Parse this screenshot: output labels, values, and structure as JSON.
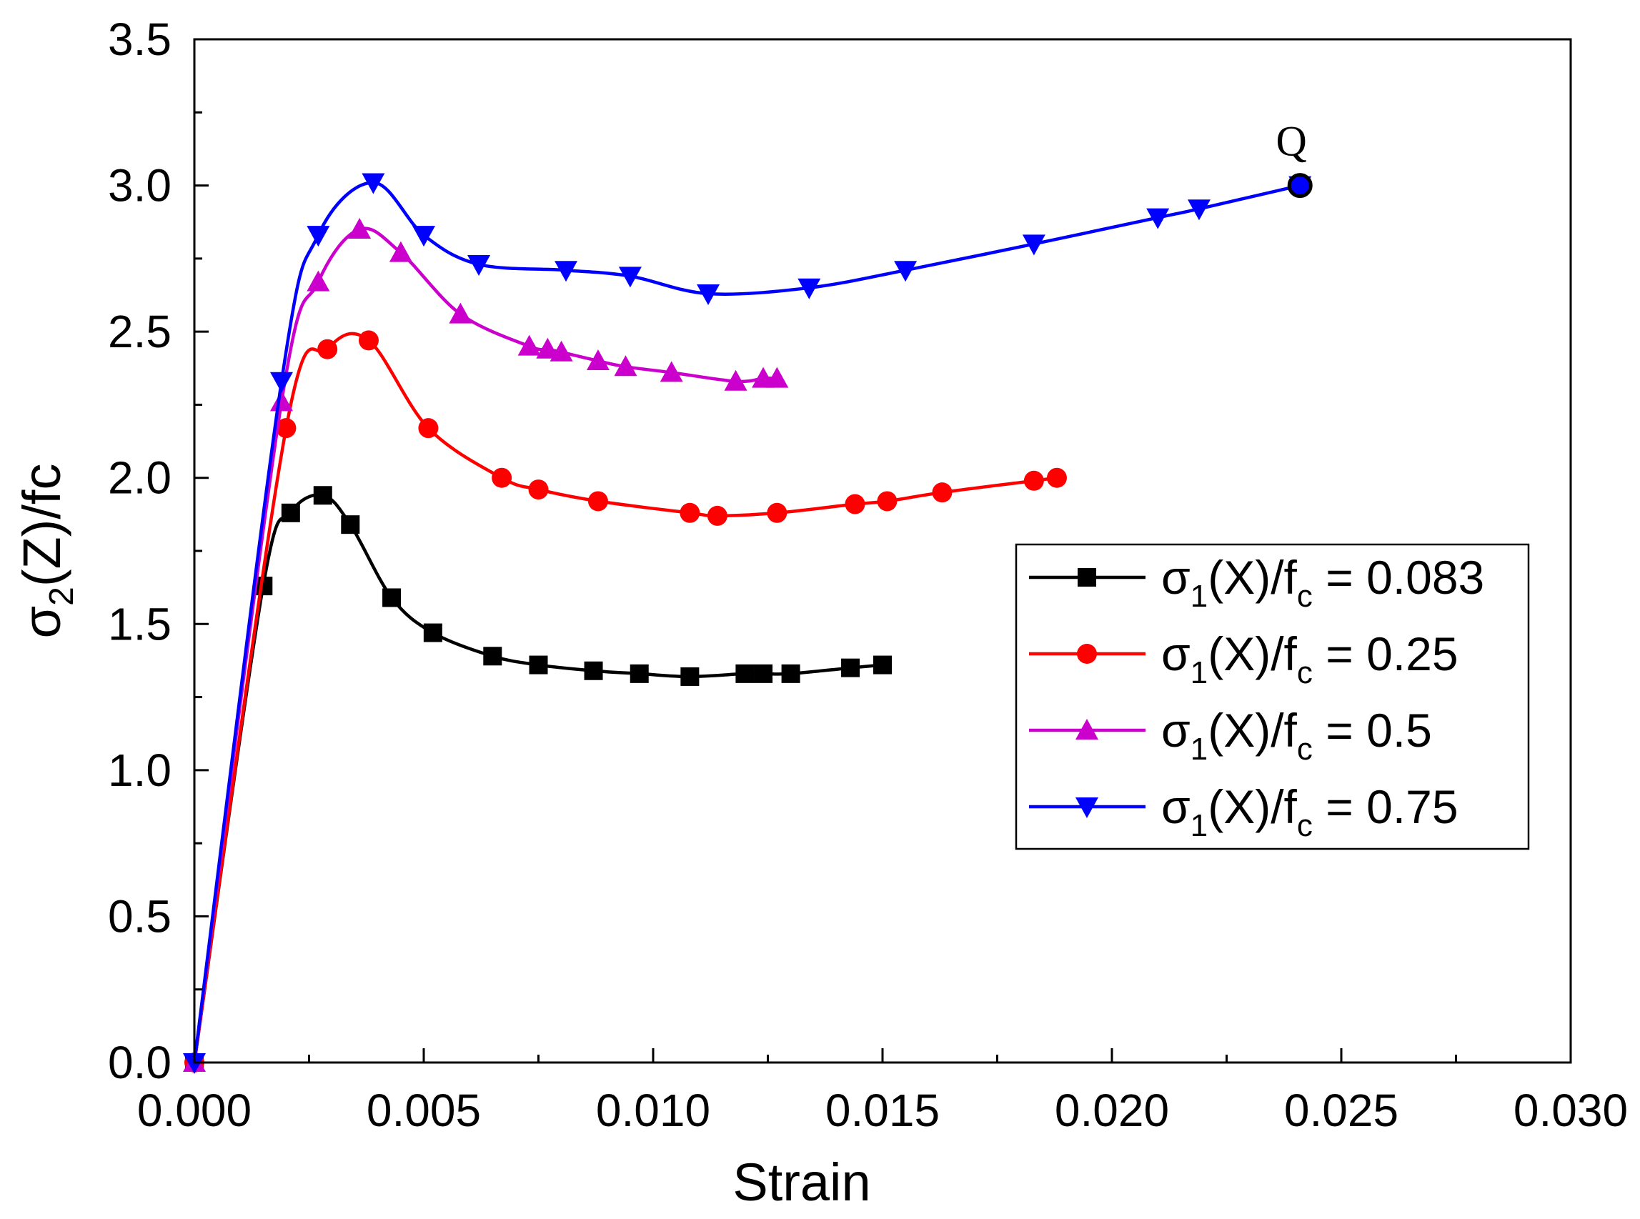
{
  "chart_data": {
    "type": "line",
    "title": "",
    "xlabel": "Strain",
    "ylabel_main": "σ",
    "ylabel_sub": "2",
    "ylabel_rest": "(Z)/fc",
    "xlim": [
      0.0,
      0.03
    ],
    "ylim": [
      0.0,
      3.5
    ],
    "xticks": [
      "0.000",
      "0.005",
      "0.010",
      "0.015",
      "0.020",
      "0.025",
      "0.030"
    ],
    "yticks": [
      "0.0",
      "0.5",
      "1.0",
      "1.5",
      "2.0",
      "2.5",
      "3.0",
      "3.5"
    ],
    "grid": false,
    "legend_position": "right-middle",
    "series": [
      {
        "name": "σ1(X)/fc = 0.083",
        "legend_main": "σ",
        "legend_sub1": "1",
        "legend_mid": "(X)/f",
        "legend_sub2": "c",
        "legend_value": " = 0.083",
        "color": "#000000",
        "marker": "square",
        "x": [
          0.0,
          0.0015,
          0.0021,
          0.0028,
          0.0034,
          0.0043,
          0.0052,
          0.0065,
          0.0075,
          0.0087,
          0.0097,
          0.0108,
          0.012,
          0.0124,
          0.013,
          0.0143,
          0.015
        ],
        "y": [
          0.0,
          1.63,
          1.88,
          1.94,
          1.84,
          1.59,
          1.47,
          1.39,
          1.36,
          1.34,
          1.33,
          1.32,
          1.33,
          1.33,
          1.33,
          1.35,
          1.36
        ]
      },
      {
        "name": "σ1(X)/fc = 0.25",
        "legend_main": "σ",
        "legend_sub1": "1",
        "legend_mid": "(X)/f",
        "legend_sub2": "c",
        "legend_value": " = 0.25",
        "color": "#ff0000",
        "marker": "circle",
        "x": [
          0.0,
          0.002,
          0.0029,
          0.0038,
          0.0051,
          0.0067,
          0.0075,
          0.0088,
          0.0108,
          0.0114,
          0.0127,
          0.0144,
          0.0151,
          0.0163,
          0.0183,
          0.0188
        ],
        "y": [
          0.0,
          2.17,
          2.44,
          2.47,
          2.17,
          2.0,
          1.96,
          1.92,
          1.88,
          1.87,
          1.88,
          1.91,
          1.92,
          1.95,
          1.99,
          2.0
        ]
      },
      {
        "name": "σ1(X)/fc = 0.5",
        "legend_main": "σ",
        "legend_sub1": "1",
        "legend_mid": "(X)/f",
        "legend_sub2": "c",
        "legend_value": " = 0.5",
        "color": "#cc00cc",
        "marker": "triangle-up",
        "x": [
          0.0,
          0.0019,
          0.0027,
          0.0036,
          0.0045,
          0.0058,
          0.0073,
          0.0077,
          0.008,
          0.0088,
          0.0094,
          0.0104,
          0.0118,
          0.0124,
          0.0127
        ],
        "y": [
          0.0,
          2.26,
          2.67,
          2.85,
          2.77,
          2.56,
          2.45,
          2.44,
          2.43,
          2.4,
          2.38,
          2.36,
          2.33,
          2.34,
          2.34
        ]
      },
      {
        "name": "σ1(X)/fc = 0.75",
        "legend_main": "σ",
        "legend_sub1": "1",
        "legend_mid": "(X)/f",
        "legend_sub2": "c",
        "legend_value": " = 0.75",
        "color": "#0000ff",
        "marker": "triangle-down",
        "x": [
          0.0,
          0.0019,
          0.0027,
          0.0039,
          0.005,
          0.0062,
          0.0081,
          0.0095,
          0.0112,
          0.0134,
          0.0155,
          0.0183,
          0.021,
          0.0219,
          0.0241
        ],
        "y": [
          0.0,
          2.33,
          2.83,
          3.01,
          2.83,
          2.73,
          2.71,
          2.69,
          2.63,
          2.65,
          2.71,
          2.8,
          2.89,
          2.92,
          3.0
        ]
      }
    ],
    "annotations": [
      {
        "text": "Q",
        "x": 0.0241,
        "y": 3.0
      }
    ]
  }
}
